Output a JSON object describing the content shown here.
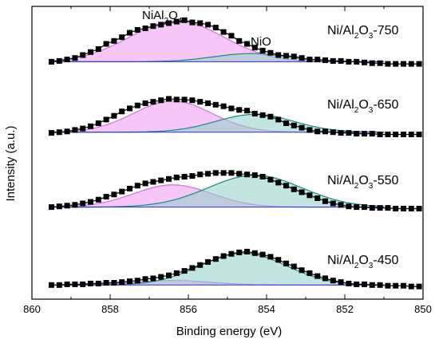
{
  "chart_data": {
    "type": "line",
    "xlabel": "Binding energy (eV)",
    "ylabel": "Intensity (a.u.)",
    "xlim": [
      860,
      850
    ],
    "x_reversed": true,
    "x_ticks": [
      "860",
      "858",
      "856",
      "854",
      "852",
      "850"
    ],
    "y_ticks": [],
    "grid": false,
    "annotations": {
      "peak1": {
        "base": "NiAl",
        "sub1": "2",
        "mid": "O",
        "sub2": "4"
      },
      "peak2": "NiO"
    },
    "peak_centers": {
      "NiAl2O4": 856.3,
      "NiO": 854.5
    },
    "colors": {
      "NiAl2O4_fill": "#ee99ee",
      "NiAl2O4_line": "#d070d8",
      "NiO_fill": "#8fd0c8",
      "NiO_line": "#1a8a80",
      "baseline": "#3030d0",
      "envelope": "#000000",
      "points": "#000000"
    },
    "series": [
      {
        "name_parts": {
          "pre": "Ni/Al",
          "sub1": "2",
          "mid": "O",
          "sub2": "3",
          "post": "-750"
        },
        "offset": 3.0,
        "background": 0.05,
        "NiAl2O4": {
          "center": 856.3,
          "height": 0.55,
          "sigma": 1.2
        },
        "NiO": {
          "center": 854.4,
          "height": 0.11,
          "sigma": 0.95
        },
        "points": [
          [
            859.5,
            0.05
          ],
          [
            859.3,
            0.06
          ],
          [
            859.1,
            0.08
          ],
          [
            858.9,
            0.1
          ],
          [
            858.7,
            0.14
          ],
          [
            858.5,
            0.18
          ],
          [
            858.3,
            0.22
          ],
          [
            858.1,
            0.29
          ],
          [
            857.9,
            0.33
          ],
          [
            857.7,
            0.38
          ],
          [
            857.5,
            0.44
          ],
          [
            857.3,
            0.48
          ],
          [
            857.1,
            0.5
          ],
          [
            856.9,
            0.53
          ],
          [
            856.7,
            0.55
          ],
          [
            856.5,
            0.57
          ],
          [
            856.3,
            0.59
          ],
          [
            856.1,
            0.61
          ],
          [
            855.9,
            0.58
          ],
          [
            855.7,
            0.57
          ],
          [
            855.5,
            0.55
          ],
          [
            855.3,
            0.51
          ],
          [
            855.1,
            0.45
          ],
          [
            854.9,
            0.4
          ],
          [
            854.7,
            0.33
          ],
          [
            854.5,
            0.29
          ],
          [
            854.3,
            0.24
          ],
          [
            854.1,
            0.2
          ],
          [
            853.9,
            0.17
          ],
          [
            853.7,
            0.14
          ],
          [
            853.5,
            0.13
          ],
          [
            853.3,
            0.12
          ],
          [
            853.1,
            0.1
          ],
          [
            852.9,
            0.08
          ],
          [
            852.7,
            0.08
          ],
          [
            852.5,
            0.07
          ],
          [
            852.3,
            0.06
          ],
          [
            852.1,
            0.06
          ],
          [
            851.9,
            0.05
          ],
          [
            851.7,
            0.05
          ],
          [
            851.5,
            0.04
          ],
          [
            851.3,
            0.03
          ],
          [
            851.1,
            0.03
          ],
          [
            850.9,
            0.02
          ],
          [
            850.7,
            0.02
          ],
          [
            850.5,
            0.02
          ],
          [
            850.3,
            0.02
          ],
          [
            850.1,
            0.02
          ]
        ]
      },
      {
        "name_parts": {
          "pre": "Ni/Al",
          "sub1": "2",
          "mid": "O",
          "sub2": "3",
          "post": "-650"
        },
        "offset": 2.05,
        "background": 0.05,
        "NiAl2O4": {
          "center": 856.4,
          "height": 0.42,
          "sigma": 1.0
        },
        "NiO": {
          "center": 854.3,
          "height": 0.24,
          "sigma": 1.0
        },
        "points": [
          [
            859.5,
            0.04
          ],
          [
            859.3,
            0.05
          ],
          [
            859.1,
            0.06
          ],
          [
            858.9,
            0.08
          ],
          [
            858.7,
            0.1
          ],
          [
            858.5,
            0.13
          ],
          [
            858.3,
            0.17
          ],
          [
            858.1,
            0.22
          ],
          [
            857.9,
            0.27
          ],
          [
            857.7,
            0.33
          ],
          [
            857.5,
            0.37
          ],
          [
            857.3,
            0.41
          ],
          [
            857.1,
            0.44
          ],
          [
            856.9,
            0.46
          ],
          [
            856.7,
            0.48
          ],
          [
            856.5,
            0.5
          ],
          [
            856.3,
            0.49
          ],
          [
            856.1,
            0.49
          ],
          [
            855.9,
            0.48
          ],
          [
            855.7,
            0.46
          ],
          [
            855.5,
            0.44
          ],
          [
            855.3,
            0.42
          ],
          [
            855.1,
            0.4
          ],
          [
            854.9,
            0.37
          ],
          [
            854.7,
            0.35
          ],
          [
            854.5,
            0.34
          ],
          [
            854.3,
            0.3
          ],
          [
            854.1,
            0.28
          ],
          [
            853.9,
            0.26
          ],
          [
            853.7,
            0.22
          ],
          [
            853.5,
            0.17
          ],
          [
            853.3,
            0.14
          ],
          [
            853.1,
            0.11
          ],
          [
            852.9,
            0.08
          ],
          [
            852.7,
            0.06
          ],
          [
            852.5,
            0.06
          ],
          [
            852.3,
            0.05
          ],
          [
            852.1,
            0.04
          ],
          [
            851.9,
            0.04
          ],
          [
            851.7,
            0.03
          ],
          [
            851.5,
            0.03
          ],
          [
            851.3,
            0.03
          ],
          [
            851.1,
            0.02
          ],
          [
            850.9,
            0.02
          ],
          [
            850.7,
            0.02
          ],
          [
            850.5,
            0.02
          ],
          [
            850.3,
            0.02
          ],
          [
            850.1,
            0.02
          ]
        ]
      },
      {
        "name_parts": {
          "pre": "Ni/Al",
          "sub1": "2",
          "mid": "O",
          "sub2": "3",
          "post": "-550"
        },
        "offset": 1.05,
        "background": 0.04,
        "NiAl2O4": {
          "center": 856.4,
          "height": 0.3,
          "sigma": 1.0
        },
        "NiO": {
          "center": 854.3,
          "height": 0.43,
          "sigma": 1.2
        },
        "points": [
          [
            859.5,
            0.04
          ],
          [
            859.3,
            0.05
          ],
          [
            859.1,
            0.06
          ],
          [
            858.9,
            0.07
          ],
          [
            858.7,
            0.09
          ],
          [
            858.5,
            0.11
          ],
          [
            858.3,
            0.14
          ],
          [
            858.1,
            0.18
          ],
          [
            857.9,
            0.21
          ],
          [
            857.7,
            0.25
          ],
          [
            857.5,
            0.29
          ],
          [
            857.3,
            0.33
          ],
          [
            857.1,
            0.36
          ],
          [
            856.9,
            0.38
          ],
          [
            856.7,
            0.4
          ],
          [
            856.5,
            0.42
          ],
          [
            856.3,
            0.44
          ],
          [
            856.1,
            0.45
          ],
          [
            855.9,
            0.46
          ],
          [
            855.7,
            0.48
          ],
          [
            855.5,
            0.49
          ],
          [
            855.3,
            0.5
          ],
          [
            855.1,
            0.5
          ],
          [
            854.9,
            0.5
          ],
          [
            854.7,
            0.49
          ],
          [
            854.5,
            0.48
          ],
          [
            854.3,
            0.47
          ],
          [
            854.1,
            0.45
          ],
          [
            853.9,
            0.41
          ],
          [
            853.7,
            0.37
          ],
          [
            853.5,
            0.33
          ],
          [
            853.3,
            0.28
          ],
          [
            853.1,
            0.24
          ],
          [
            852.9,
            0.2
          ],
          [
            852.7,
            0.16
          ],
          [
            852.5,
            0.12
          ],
          [
            852.3,
            0.09
          ],
          [
            852.1,
            0.07
          ],
          [
            851.9,
            0.05
          ],
          [
            851.7,
            0.04
          ],
          [
            851.5,
            0.04
          ],
          [
            851.3,
            0.03
          ],
          [
            851.1,
            0.03
          ],
          [
            850.9,
            0.03
          ],
          [
            850.7,
            0.02
          ],
          [
            850.5,
            0.02
          ],
          [
            850.3,
            0.02
          ],
          [
            850.1,
            0.02
          ]
        ]
      },
      {
        "name_parts": {
          "pre": "Ni/Al",
          "sub1": "2",
          "mid": "O",
          "sub2": "3",
          "post": "-450"
        },
        "offset": 0.0,
        "background": 0.04,
        "NiAl2O4": {
          "center": 856.4,
          "height": 0.06,
          "sigma": 1.0
        },
        "NiO": {
          "center": 854.6,
          "height": 0.43,
          "sigma": 1.1
        },
        "points": [
          [
            859.5,
            0.04
          ],
          [
            859.3,
            0.04
          ],
          [
            859.1,
            0.05
          ],
          [
            858.9,
            0.05
          ],
          [
            858.7,
            0.05
          ],
          [
            858.5,
            0.06
          ],
          [
            858.3,
            0.06
          ],
          [
            858.1,
            0.07
          ],
          [
            857.9,
            0.07
          ],
          [
            857.7,
            0.08
          ],
          [
            857.5,
            0.09
          ],
          [
            857.3,
            0.1
          ],
          [
            857.1,
            0.12
          ],
          [
            856.9,
            0.13
          ],
          [
            856.7,
            0.15
          ],
          [
            856.5,
            0.17
          ],
          [
            856.3,
            0.2
          ],
          [
            856.1,
            0.23
          ],
          [
            855.9,
            0.27
          ],
          [
            855.7,
            0.31
          ],
          [
            855.5,
            0.35
          ],
          [
            855.3,
            0.39
          ],
          [
            855.1,
            0.43
          ],
          [
            854.9,
            0.46
          ],
          [
            854.7,
            0.48
          ],
          [
            854.5,
            0.49
          ],
          [
            854.3,
            0.47
          ],
          [
            854.1,
            0.45
          ],
          [
            853.9,
            0.42
          ],
          [
            853.7,
            0.38
          ],
          [
            853.5,
            0.33
          ],
          [
            853.3,
            0.29
          ],
          [
            853.1,
            0.24
          ],
          [
            852.9,
            0.2
          ],
          [
            852.7,
            0.16
          ],
          [
            852.5,
            0.13
          ],
          [
            852.3,
            0.1
          ],
          [
            852.1,
            0.08
          ],
          [
            851.9,
            0.06
          ],
          [
            851.7,
            0.05
          ],
          [
            851.5,
            0.05
          ],
          [
            851.3,
            0.04
          ],
          [
            851.1,
            0.04
          ],
          [
            850.9,
            0.03
          ],
          [
            850.7,
            0.03
          ],
          [
            850.5,
            0.03
          ],
          [
            850.3,
            0.02
          ],
          [
            850.1,
            0.02
          ]
        ]
      }
    ]
  }
}
